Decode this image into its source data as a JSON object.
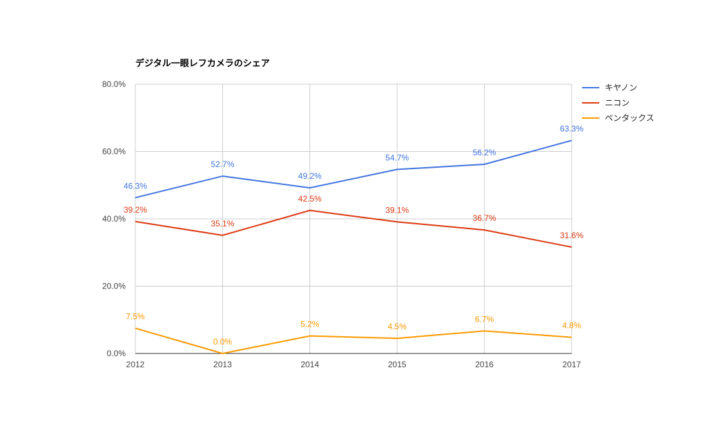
{
  "chart_data": {
    "type": "line",
    "title": "デジタル一眼レフカメラのシェア",
    "xlabel": "",
    "ylabel": "",
    "categories": [
      "2012",
      "2013",
      "2014",
      "2015",
      "2016",
      "2017"
    ],
    "ylim": [
      0,
      80
    ],
    "yticks": [
      "0.0%",
      "20.0%",
      "40.0%",
      "60.0%",
      "80.0%"
    ],
    "ytick_values": [
      0,
      20,
      40,
      60,
      80
    ],
    "grid": true,
    "legend_position": "right",
    "series": [
      {
        "name": "キヤノン",
        "color": "#4374e0",
        "values": [
          46.3,
          52.7,
          49.2,
          54.7,
          56.2,
          63.3
        ],
        "labels": [
          "46.3%",
          "52.7%",
          "49.2%",
          "54.7%",
          "56.2%",
          "63.3%"
        ]
      },
      {
        "name": "ニコン",
        "color": "#dc3912",
        "values": [
          39.2,
          35.1,
          42.5,
          39.1,
          36.7,
          31.6
        ],
        "labels": [
          "39.2%",
          "35.1%",
          "42.5%",
          "39.1%",
          "36.7%",
          "31.6%"
        ]
      },
      {
        "name": "ペンタックス",
        "color": "#ff9900",
        "values": [
          7.5,
          0.0,
          5.2,
          4.5,
          6.7,
          4.8
        ],
        "labels": [
          "7.5%",
          "0.0%",
          "5.2%",
          "4.5%",
          "6.7%",
          "4.8%"
        ]
      }
    ]
  }
}
